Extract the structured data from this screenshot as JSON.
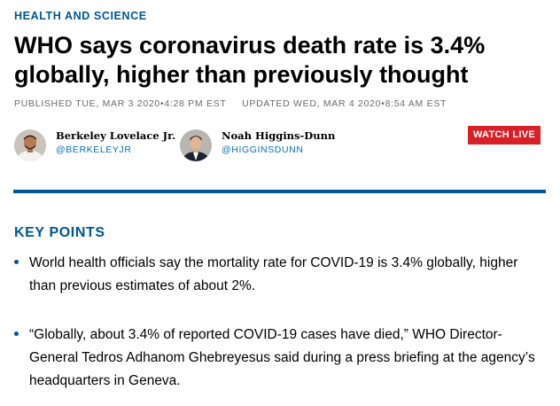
{
  "article": {
    "section": "HEALTH AND SCIENCE",
    "headline": "WHO says coronavirus death rate is 3.4% globally, higher than previously thought",
    "published": "PUBLISHED TUE, MAR 3 2020•4:28 PM EST",
    "updated": "UPDATED WED, MAR 4 2020•8:54 AM EST"
  },
  "authors": [
    {
      "name": "Berkeley Lovelace Jr.",
      "handle": "@BERKELEYJR"
    },
    {
      "name": "Noah Higgins-Dunn",
      "handle": "@HIGGINSDUNN"
    }
  ],
  "watch_live": "WATCH LIVE",
  "key_points": {
    "title": "KEY POINTS",
    "items": [
      "World health officials say the mortality rate for COVID-19 is 3.4% globally, higher than previous estimates of about 2%.",
      "“Globally, about 3.4% of reported COVID-19 cases have died,” WHO Director-General Tedros Adhanom Ghebreyesus said during a press briefing at the agency’s headquarters in Geneva."
    ]
  },
  "colors": {
    "brand_blue": "#005594",
    "link_blue": "#0a6fb5",
    "live_red": "#d72027",
    "meta_gray": "#6b6b6b"
  },
  "icons": [
    "author-photo",
    "author-photo"
  ]
}
